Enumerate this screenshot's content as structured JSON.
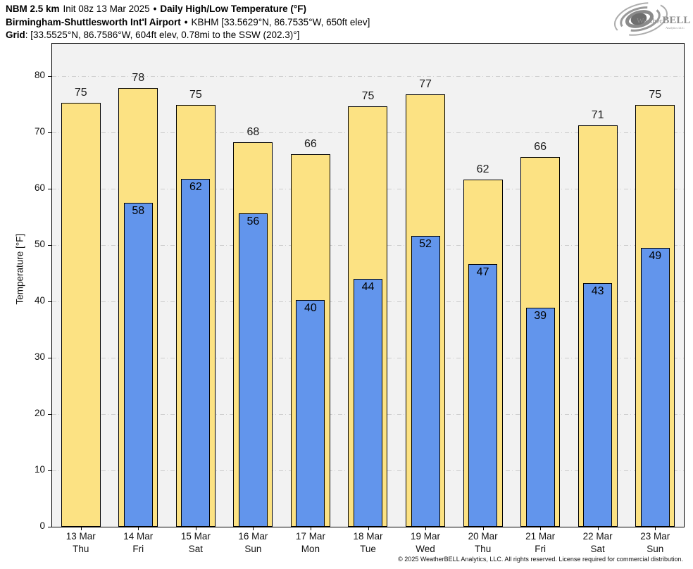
{
  "header": {
    "line1": {
      "model": "NBM 2.5 km",
      "init": "Init 08z 13 Mar 2025",
      "sep": "•",
      "product": "Daily High/Low Temperature (°F)"
    },
    "line2": {
      "station_name": "Birmingham-Shuttlesworth Int'l Airport",
      "sep": "•",
      "station_info": "KBHM [33.5629°N, 86.7535°W, 650ft elev]"
    },
    "line3": {
      "label": "Grid",
      "info": ": [33.5525°N, 86.7586°W, 604ft elev, 0.78mi to the SSW (202.3)°]"
    }
  },
  "logo": {
    "weather": "Weather",
    "bell": "BELL",
    "sub": "Analytics LLC"
  },
  "footer": {
    "copyright": "© 2025 WeatherBELL Analytics, LLC. All rights reserved. License required for commercial distribution."
  },
  "chart_data": {
    "type": "bar",
    "title": "Daily High/Low Temperature (°F)",
    "xlabel": "",
    "ylabel": "Temperature [°F]",
    "ylim": [
      0,
      85.75
    ],
    "yticks": [
      0,
      10,
      20,
      30,
      40,
      50,
      60,
      70,
      80
    ],
    "grid": "horizontal dash-dot gridlines, light gray",
    "legend": "none",
    "categories": [
      {
        "date": "13 Mar",
        "day": "Thu"
      },
      {
        "date": "14 Mar",
        "day": "Fri"
      },
      {
        "date": "15 Mar",
        "day": "Sat"
      },
      {
        "date": "16 Mar",
        "day": "Sun"
      },
      {
        "date": "17 Mar",
        "day": "Mon"
      },
      {
        "date": "18 Mar",
        "day": "Tue"
      },
      {
        "date": "19 Mar",
        "day": "Wed"
      },
      {
        "date": "20 Mar",
        "day": "Thu"
      },
      {
        "date": "21 Mar",
        "day": "Fri"
      },
      {
        "date": "22 Mar",
        "day": "Sat"
      },
      {
        "date": "23 Mar",
        "day": "Sun"
      }
    ],
    "series": [
      {
        "name": "Daily High",
        "values": [
          75,
          78,
          75,
          68,
          66,
          75,
          77,
          62,
          66,
          71,
          75
        ],
        "bar_values": [
          75.2,
          77.9,
          74.9,
          68.3,
          66.1,
          74.6,
          76.7,
          61.6,
          65.6,
          71.2,
          74.9
        ],
        "label_position": "above bar"
      },
      {
        "name": "Daily Low",
        "values": [
          null,
          58,
          62,
          56,
          40,
          44,
          52,
          47,
          39,
          43,
          49
        ],
        "bar_values": [
          null,
          57.5,
          61.7,
          55.6,
          40.2,
          44.0,
          51.6,
          46.6,
          38.9,
          43.3,
          49.5
        ],
        "label_position": "inside bar top"
      }
    ]
  },
  "colors": {
    "high_fill": "#FCE283",
    "low_fill": "#6295EC",
    "bar_border": "#000000",
    "plot_bg": "#F2F2F2",
    "page_bg": "#FFFFFF",
    "grid": "#CCCCCC",
    "logo_gray": "#8F8F8F"
  }
}
